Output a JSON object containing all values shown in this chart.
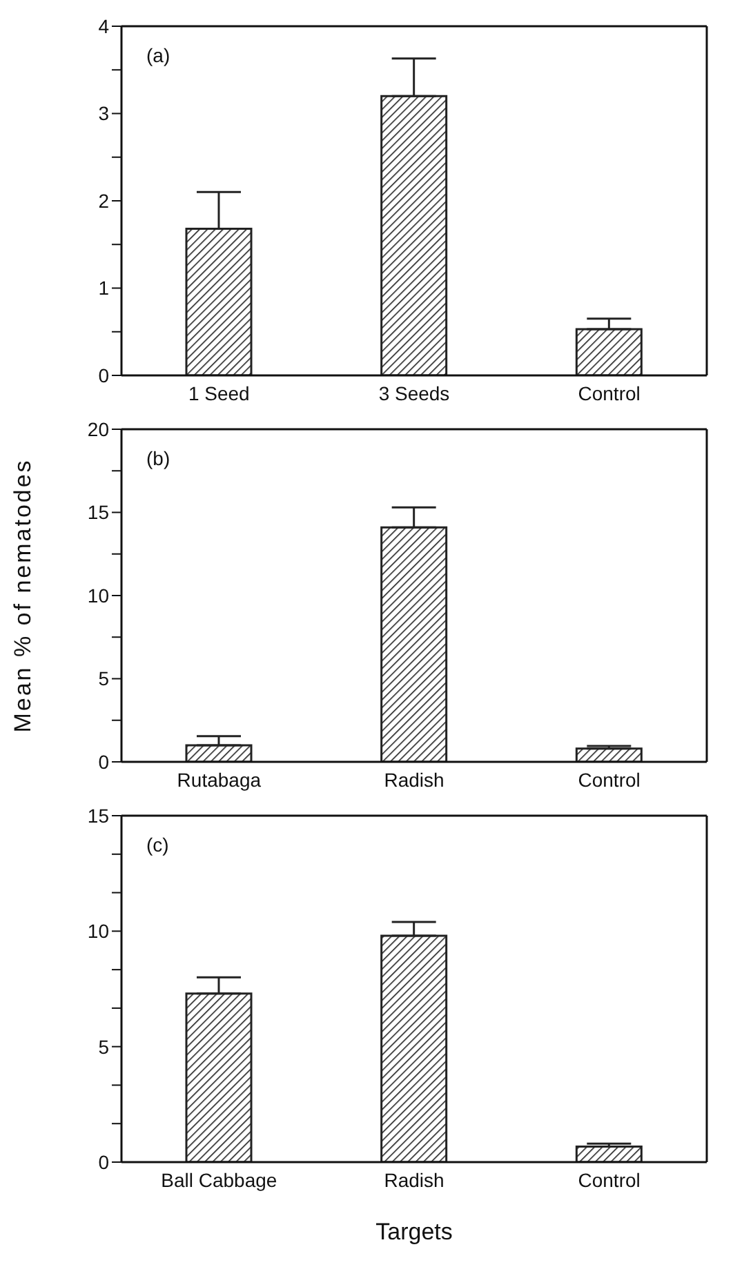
{
  "chart_data": [
    {
      "type": "bar",
      "categories": [
        "1 Seed",
        "3 Seeds",
        "Control"
      ],
      "values": [
        1.68,
        3.2,
        0.53
      ],
      "errors": [
        [
          1.68,
          2.1
        ],
        [
          3.2,
          3.63
        ],
        [
          0.53,
          0.65
        ]
      ],
      "color": "#222222",
      "ylim": [
        0,
        4
      ],
      "yticks": [
        0,
        {
          "value": 0.5,
          "label": null
        },
        1,
        {
          "value": 1.5,
          "label": null
        },
        2,
        {
          "value": 2.5,
          "label": null
        },
        3,
        {
          "value": 3.5,
          "label": null
        },
        4
      ],
      "annotations": [
        "(a)"
      ]
    },
    {
      "type": "bar",
      "categories": [
        "Rutabaga",
        "Radish",
        "Control"
      ],
      "values": [
        1.0,
        14.1,
        0.8
      ],
      "errors": [
        [
          1.0,
          1.55
        ],
        [
          14.1,
          15.3
        ],
        [
          0.8,
          0.95
        ]
      ],
      "color": "#222222",
      "ylim": [
        0,
        20
      ],
      "yticks": [
        0,
        {
          "value": 2.5,
          "label": null
        },
        5,
        {
          "value": 7.5,
          "label": null
        },
        10,
        {
          "value": 12.5,
          "label": null
        },
        15,
        {
          "value": 17.5,
          "label": null
        },
        20
      ],
      "ylabel": "Mean % of nematodes",
      "annotations": [
        "(b)"
      ]
    },
    {
      "type": "bar",
      "categories": [
        "Ball Cabbage",
        "Radish",
        "Control"
      ],
      "values": [
        7.3,
        9.8,
        0.67
      ],
      "errors": [
        [
          7.3,
          8.0
        ],
        [
          9.8,
          10.4
        ],
        [
          0.67,
          0.8
        ]
      ],
      "color": "#222222",
      "ylim": [
        0,
        15
      ],
      "yticks": [
        0,
        {
          "value": 1.667,
          "label": null
        },
        {
          "value": 3.333,
          "label": null
        },
        5,
        {
          "value": 6.667,
          "label": null
        },
        {
          "value": 8.333,
          "label": null
        },
        10,
        {
          "value": 11.667,
          "label": null
        },
        {
          "value": 13.333,
          "label": null
        },
        15
      ],
      "xlabel": "Targets",
      "annotations": [
        "(c)"
      ]
    }
  ]
}
